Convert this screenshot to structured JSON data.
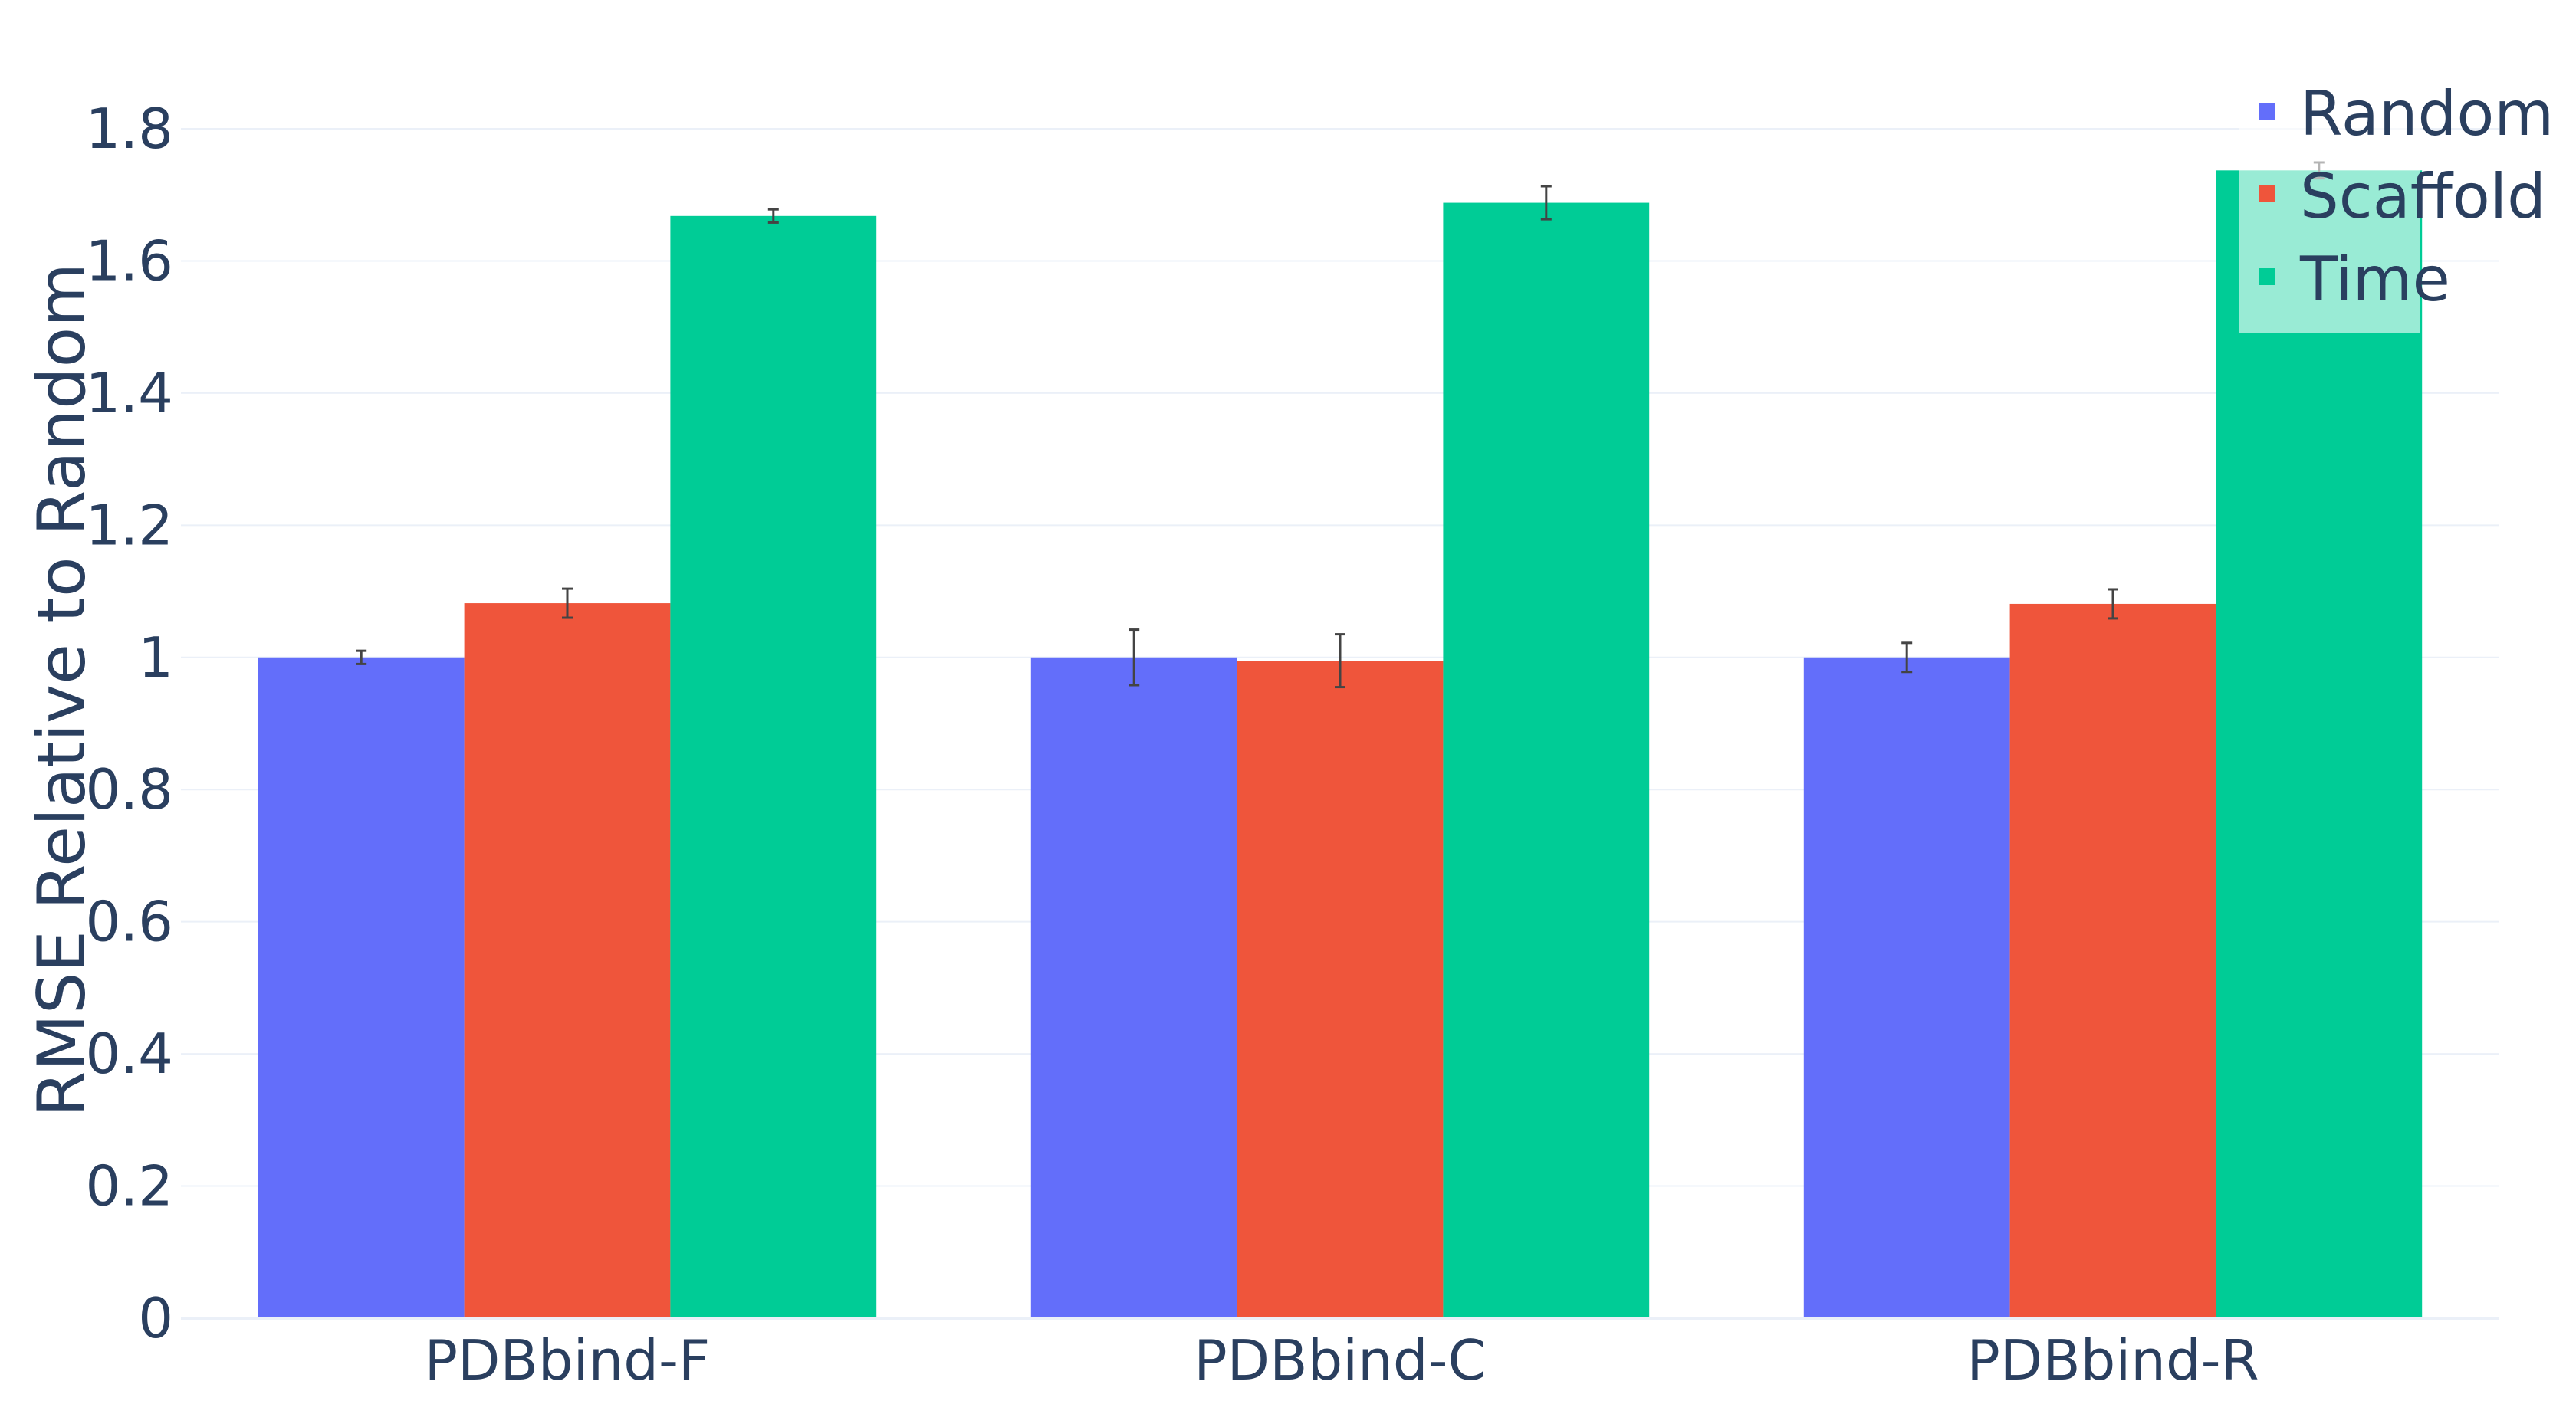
{
  "chart_data": {
    "type": "bar",
    "categories": [
      "PDBbind-F",
      "PDBbind-C",
      "PDBbind-R"
    ],
    "series": [
      {
        "name": "Random",
        "color": "#636efa",
        "values": [
          1.0,
          1.0,
          1.0
        ],
        "errors": [
          0.01,
          0.042,
          0.022
        ]
      },
      {
        "name": "Scaffold",
        "color": "#ef553b",
        "values": [
          1.082,
          0.995,
          1.081
        ],
        "errors": [
          0.022,
          0.04,
          0.022
        ]
      },
      {
        "name": "Time",
        "color": "#00cc96",
        "values": [
          1.668,
          1.688,
          1.737
        ],
        "errors": [
          0.01,
          0.025,
          0.012
        ]
      }
    ],
    "ylabel": "RMSE Relative to Random",
    "xlabel": "",
    "ylim": [
      0,
      1.8
    ],
    "yticks": [
      0,
      0.2,
      0.4,
      0.6,
      0.8,
      1,
      1.2,
      1.4,
      1.6,
      1.8
    ],
    "ytick_labels": [
      "0",
      "0.2",
      "0.4",
      "0.6",
      "0.8",
      "1",
      "1.2",
      "1.4",
      "1.6",
      "1.8"
    ],
    "grid": true,
    "legend": "top-right"
  }
}
